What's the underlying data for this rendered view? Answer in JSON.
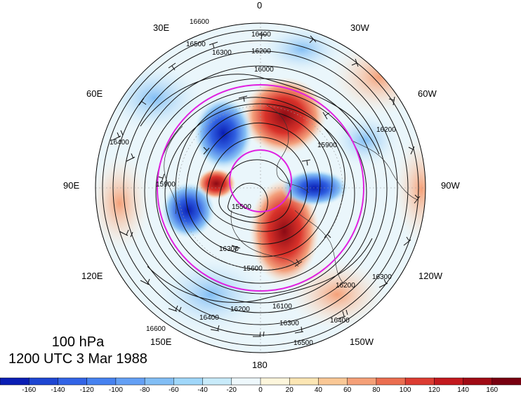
{
  "map": {
    "title_level": "100 hPa",
    "title_time": "1200 UTC 3 Mar 1988",
    "longitude_labels": {
      "top": "0",
      "bottom": "180",
      "left": "90E",
      "right": "90W",
      "upper_left_1": "30E",
      "upper_left_2": "60E",
      "lower_left_1": "120E",
      "lower_left_2": "150E",
      "upper_right_1": "30W",
      "upper_right_2": "60W",
      "lower_right_1": "120W",
      "lower_right_2": "150W"
    },
    "contour_labels": [
      "16600",
      "16500",
      "16400",
      "16300",
      "16200",
      "16100",
      "16000",
      "15900",
      "15800",
      "15700",
      "15600",
      "15500"
    ],
    "colorbar": {
      "ticks": [
        "-160",
        "-140",
        "-120",
        "-100",
        "-80",
        "-60",
        "-40",
        "-20",
        "0",
        "20",
        "40",
        "60",
        "80",
        "100",
        "120",
        "140",
        "160"
      ],
      "colors": [
        "#0a1eb4",
        "#1e46d2",
        "#3264e6",
        "#4682f0",
        "#64a0f5",
        "#82bef5",
        "#a0d7fa",
        "#c8ebfa",
        "#eef8fc",
        "#fdf6dc",
        "#fce6b4",
        "#fac896",
        "#f5a078",
        "#eb6e50",
        "#dc3c32",
        "#c3191e",
        "#a00a14",
        "#780010"
      ]
    },
    "anomalies": [
      {
        "kind": "positive",
        "strength": 160
      },
      {
        "kind": "positive",
        "strength": 150
      },
      {
        "kind": "negative",
        "strength": -160
      },
      {
        "kind": "negative",
        "strength": -150
      },
      {
        "kind": "negative",
        "strength": -140
      }
    ]
  }
}
